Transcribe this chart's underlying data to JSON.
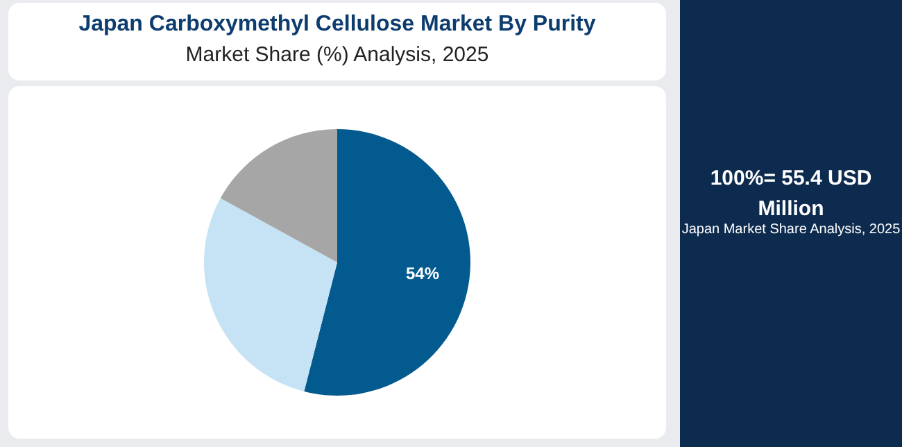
{
  "chart_data": {
    "type": "pie",
    "title": "Japan Carboxymethyl Cellulose Market By Purity",
    "subtitle": "Market Share (%) Analysis, 2025",
    "categories": [
      null,
      null,
      null
    ],
    "values": [
      54,
      29,
      17
    ],
    "colors": [
      "#035a8e",
      "#c5e3f5",
      "#a6a6a6"
    ],
    "value_labels": [
      "54%",
      null,
      null
    ],
    "annotations": [
      "100%= 55.4 USD Million",
      "Japan Market Share Analysis, 2025"
    ]
  }
}
